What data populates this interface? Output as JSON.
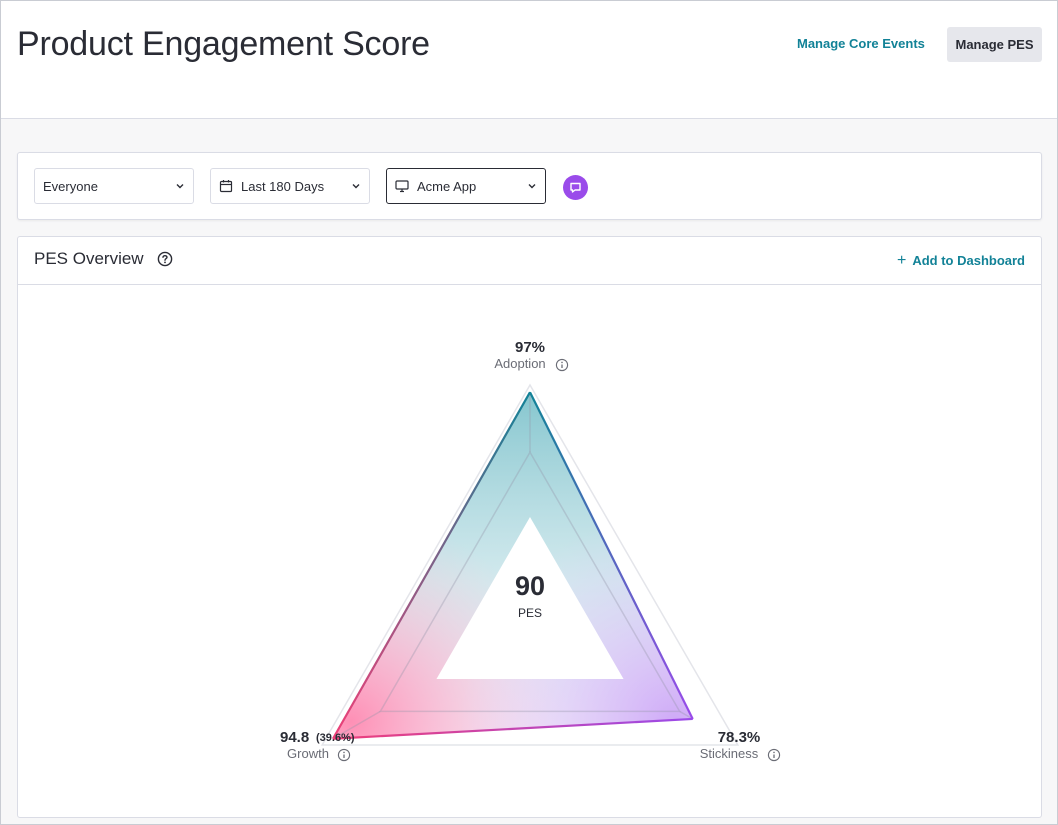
{
  "header": {
    "title": "Product Engagement Score",
    "manage_core_events": "Manage Core Events",
    "manage_pes": "Manage PES"
  },
  "filters": {
    "segment": "Everyone",
    "date_range": "Last 180 Days",
    "app": "Acme App"
  },
  "overview": {
    "title": "PES Overview",
    "add_to_dashboard": "Add to Dashboard"
  },
  "chart_data": {
    "type": "radar",
    "center_value": "90",
    "center_label": "PES",
    "axes": [
      {
        "name": "Adoption",
        "value_label": "97%",
        "value": 97
      },
      {
        "name": "Stickiness",
        "value_label": "78.3%",
        "value": 78.3
      },
      {
        "name": "Growth",
        "value_label": "94.8",
        "value_sub": "(39.6%)",
        "value": 94.8
      }
    ],
    "max": 100,
    "colors": {
      "adoption": "#128297",
      "stickiness": "#9a4bea",
      "growth": "#ef3f78"
    }
  }
}
